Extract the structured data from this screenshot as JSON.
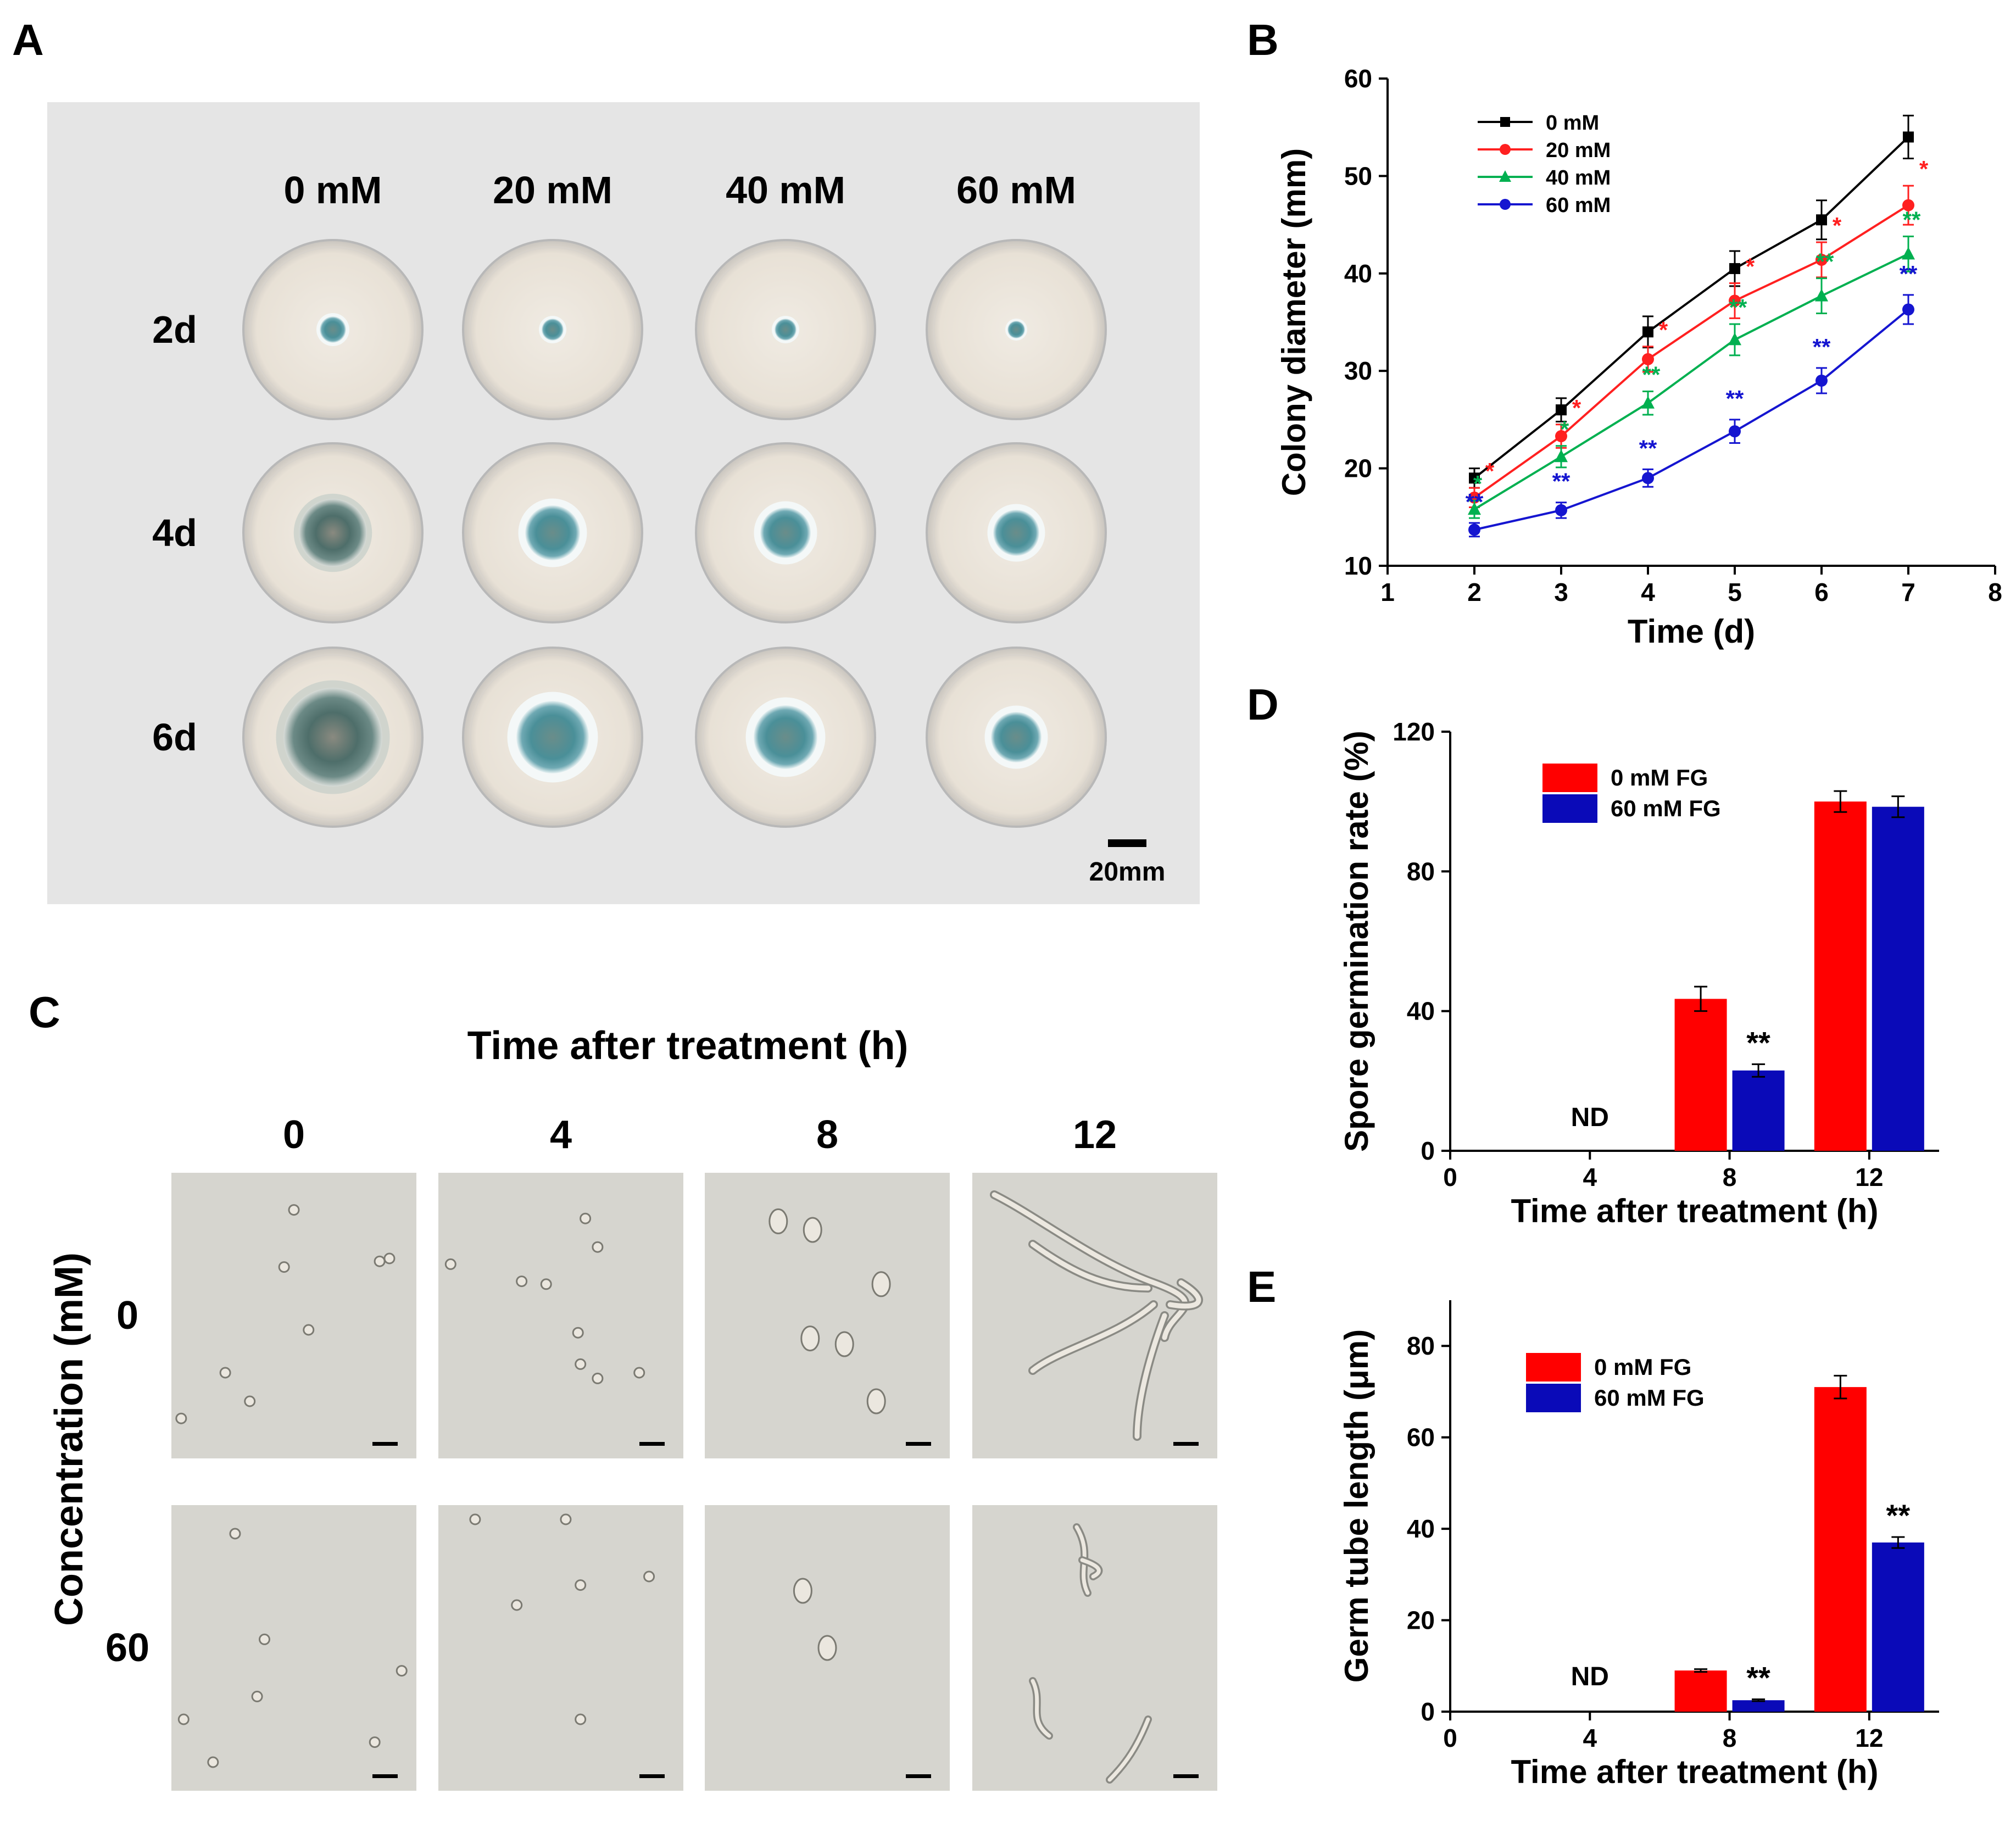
{
  "panel_letters": {
    "A": "A",
    "B": "B",
    "C": "C",
    "D": "D",
    "E": "E"
  },
  "panel_a": {
    "columns": [
      "0 mM",
      "20 mM",
      "40 mM",
      "60 mM"
    ],
    "rows": [
      "2d",
      "4d",
      "6d"
    ],
    "scale_label": "20mm",
    "colors": {
      "background": "#e5e5e5",
      "colony": "#4a8f98"
    }
  },
  "panel_c": {
    "title": "Time after treatment (h)",
    "y_title": "Concentration (mM)",
    "columns": [
      "0",
      "4",
      "8",
      "12"
    ],
    "rows": [
      "0",
      "60"
    ],
    "colors": {
      "background": "#d6d5cf"
    }
  },
  "chart_data": [
    {
      "type": "line",
      "panel": "B",
      "xlabel": "Time (d)",
      "ylabel": "Colony diameter (mm)",
      "xlim": [
        1,
        8
      ],
      "ylim": [
        10,
        60
      ],
      "xticks": [
        "1",
        "2",
        "3",
        "4",
        "5",
        "6",
        "7",
        "8"
      ],
      "yticks": [
        "10",
        "20",
        "30",
        "40",
        "50",
        "60"
      ],
      "x": [
        2,
        3,
        4,
        5,
        6,
        7
      ],
      "series": [
        {
          "name": "0   mM",
          "color": "#000000",
          "marker": "square",
          "values": [
            19,
            26,
            34,
            40.5,
            45.5,
            54
          ],
          "errors": [
            1,
            1.2,
            1.6,
            1.8,
            2,
            2.2
          ],
          "sig": [
            "",
            "",
            "",
            "",
            "",
            ""
          ]
        },
        {
          "name": "20 mM",
          "color": "#ff2020",
          "marker": "circle",
          "values": [
            17,
            23.3,
            31.2,
            37.2,
            41.4,
            47
          ],
          "errors": [
            1,
            1.2,
            1.3,
            1.8,
            1.8,
            2
          ],
          "sig": [
            "*",
            "*",
            "*",
            "*",
            "*",
            "*"
          ]
        },
        {
          "name": "40 mM",
          "color": "#00b050",
          "marker": "triangle",
          "values": [
            15.8,
            21.2,
            26.7,
            33.2,
            37.7,
            42
          ],
          "errors": [
            0.9,
            1.1,
            1.2,
            1.6,
            1.8,
            1.8
          ],
          "sig": [
            "*",
            "*",
            "**",
            "**",
            "**",
            "**"
          ]
        },
        {
          "name": "60 mM",
          "color": "#1515d0",
          "marker": "circle",
          "values": [
            13.7,
            15.7,
            19,
            23.8,
            29,
            36.3
          ],
          "errors": [
            0.7,
            0.8,
            0.9,
            1.2,
            1.3,
            1.5
          ],
          "sig": [
            "**",
            "**",
            "**",
            "**",
            "**",
            "**"
          ]
        }
      ]
    },
    {
      "type": "bar",
      "panel": "D",
      "xlabel": "Time after treatment (h)",
      "ylabel": "Spore germination rate (%)",
      "xlim": [
        0,
        14
      ],
      "ylim": [
        0,
        120
      ],
      "categories": [
        "4",
        "8",
        "12"
      ],
      "xticks": [
        "0",
        "4",
        "8",
        "12"
      ],
      "yticks": [
        "0",
        "40",
        "80",
        "120"
      ],
      "annotation": "ND",
      "series": [
        {
          "name": "0  mM FG",
          "color": "#ff0000",
          "values": [
            0,
            43.5,
            100
          ],
          "errors": [
            0,
            3.5,
            3
          ]
        },
        {
          "name": "60 mM FG",
          "color": "#0a0ab8",
          "values": [
            0,
            23,
            98.5
          ],
          "errors": [
            0,
            1.8,
            3
          ]
        }
      ],
      "sig": [
        "",
        "**",
        ""
      ]
    },
    {
      "type": "bar",
      "panel": "E",
      "xlabel": "Time after treatment (h)",
      "ylabel": "Germ tube length (μm)",
      "xlim": [
        0,
        14
      ],
      "ylim": [
        0,
        90
      ],
      "categories": [
        "4",
        "8",
        "12"
      ],
      "xticks": [
        "0",
        "4",
        "8",
        "12"
      ],
      "yticks": [
        "0",
        "20",
        "40",
        "60",
        "80"
      ],
      "annotation": "ND",
      "series": [
        {
          "name": "0  mM FG",
          "color": "#ff0000",
          "values": [
            0,
            9,
            71
          ],
          "errors": [
            0,
            0.3,
            2.5
          ]
        },
        {
          "name": "60 mM FG",
          "color": "#0a0ab8",
          "values": [
            0,
            2.5,
            37
          ],
          "errors": [
            0,
            0.2,
            1.2
          ]
        }
      ],
      "sig": [
        "",
        "**",
        "**"
      ]
    }
  ]
}
